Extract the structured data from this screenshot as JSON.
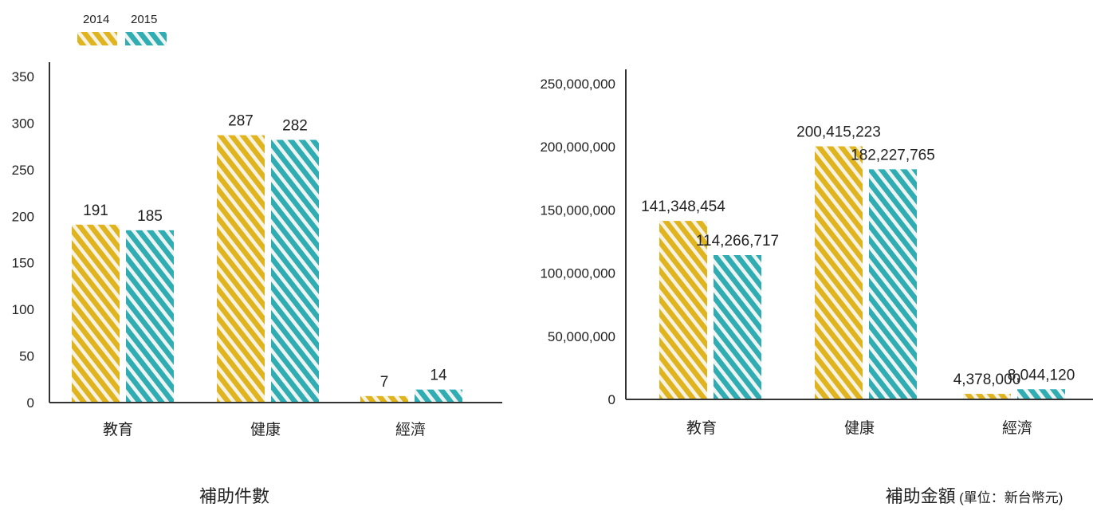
{
  "legend": [
    {
      "label": "2014",
      "color": "#E0B41E"
    },
    {
      "label": "2015",
      "color": "#2FADB3"
    }
  ],
  "chart_data": [
    {
      "type": "bar",
      "title": "補助件數",
      "subtitle": "",
      "categories": [
        "教育",
        "健康",
        "經濟"
      ],
      "series": [
        {
          "name": "2014",
          "values": [
            191,
            287,
            7
          ],
          "labels": [
            "191",
            "287",
            "7"
          ]
        },
        {
          "name": "2015",
          "values": [
            185,
            282,
            14
          ],
          "labels": [
            "185",
            "282",
            "14"
          ]
        }
      ],
      "ylim": [
        0,
        350
      ],
      "yticks": [
        "0",
        "50",
        "100",
        "150",
        "200",
        "250",
        "300",
        "350"
      ],
      "xlabel": "",
      "ylabel": "",
      "grid": false,
      "legend_position": "top-left"
    },
    {
      "type": "bar",
      "title": "補助金額",
      "subtitle": "(單位：新台幣元)",
      "categories": [
        "教育",
        "健康",
        "經濟"
      ],
      "series": [
        {
          "name": "2014",
          "values": [
            141348454,
            200415223,
            4378000
          ],
          "labels": [
            "141,348,454",
            "200,415,223",
            "4,378,000"
          ]
        },
        {
          "name": "2015",
          "values": [
            114266717,
            182227765,
            8044120
          ],
          "labels": [
            "114,266,717",
            "182,227,765",
            "8,044,120"
          ]
        }
      ],
      "ylim": [
        0,
        250000000
      ],
      "yticks": [
        "0",
        "50,000,000",
        "100,000,000",
        "150,000,000",
        "200,000,000",
        "250,000,000"
      ],
      "xlabel": "",
      "ylabel": "",
      "grid": false,
      "legend_position": "top-left"
    }
  ]
}
